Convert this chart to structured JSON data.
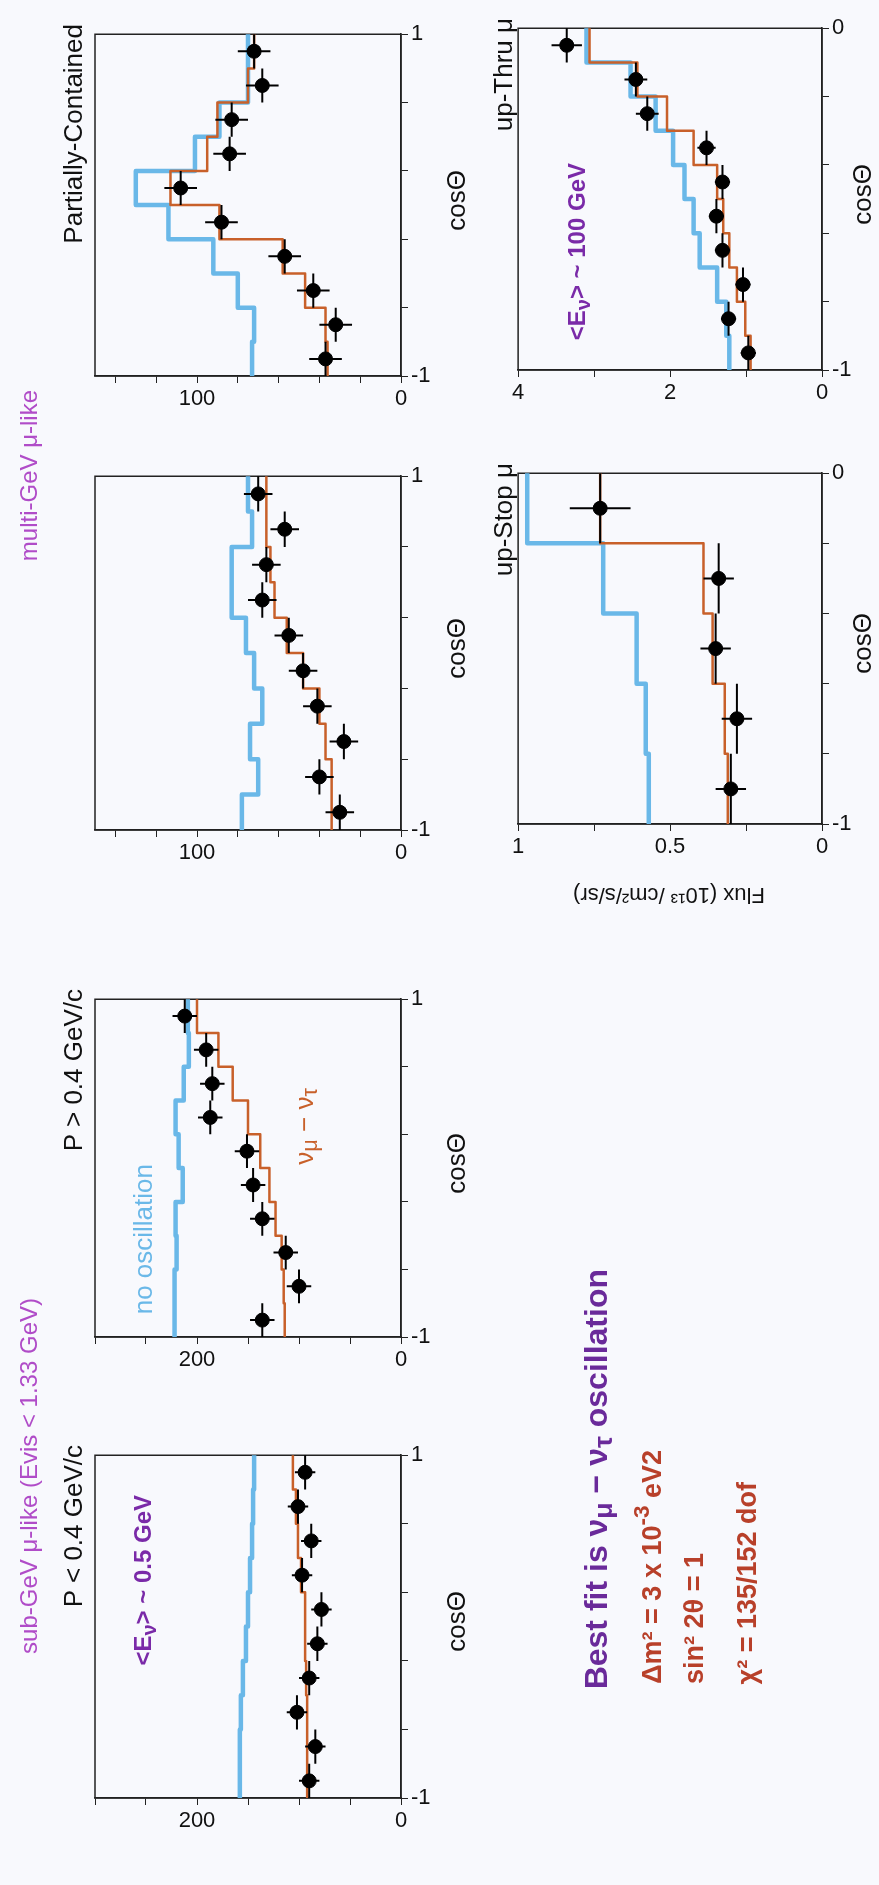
{
  "chart_data": [
    {
      "type": "line",
      "title": "P < 0.4 GeV/c",
      "ylabel": "cosΘ",
      "annotations": [
        "<E$_{ν}$> ~ 0.5 GeV"
      ],
      "xlim": [
        300,
        0
      ],
      "xticks": [
        {
          "value": 300,
          "label": null
        },
        {
          "value": 250,
          "label": null
        },
        200,
        {
          "value": 150,
          "label": null
        },
        {
          "value": 100,
          "label": null
        },
        {
          "value": 50,
          "label": null
        },
        0
      ],
      "ylim": [
        -1,
        1
      ],
      "yticks": [
        -1,
        {
          "value": -0.6,
          "label": null
        },
        {
          "value": -0.2,
          "label": null
        },
        {
          "value": 0.2,
          "label": null
        },
        {
          "value": 0.6,
          "label": null
        },
        1
      ],
      "series": [
        {
          "color": "#6ab8e8",
          "x": [
            158,
            158,
            158,
            158,
            157,
            157,
            155,
            155,
            152,
            152,
            150,
            150,
            148,
            148,
            146,
            146,
            145,
            145,
            144,
            144
          ],
          "values": [
            -1,
            -0.8,
            -0.8,
            -0.6,
            -0.6,
            -0.4,
            -0.4,
            -0.2,
            -0.2,
            0,
            0,
            0.2,
            0.2,
            0.4,
            0.4,
            0.6,
            0.6,
            0.8,
            0.8,
            1
          ]
        },
        {
          "color": "#c8602a",
          "x": [
            92,
            92,
            92,
            92,
            92,
            92,
            93,
            93,
            94,
            94,
            94,
            94,
            98,
            98,
            101,
            101,
            103,
            103,
            106,
            106
          ],
          "values": [
            -1,
            -0.8,
            -0.8,
            -0.6,
            -0.6,
            -0.4,
            -0.4,
            -0.2,
            -0.2,
            0,
            0,
            0.2,
            0.2,
            0.4,
            0.4,
            0.6,
            0.6,
            0.8,
            0.8,
            1
          ]
        },
        {
          "type": "scatter",
          "marker": "circle",
          "color": "#000000",
          "x": [
            90,
            84,
            102,
            90,
            82,
            78,
            97,
            88,
            101,
            94
          ],
          "values": [
            -0.9,
            -0.7,
            -0.5,
            -0.3,
            -0.1,
            0.1,
            0.3,
            0.5,
            0.7,
            0.9
          ],
          "xerrors": [
            10,
            10,
            10,
            10,
            10,
            10,
            10,
            10,
            10,
            10
          ],
          "errors": [
            0.1,
            0.1,
            0.1,
            0.1,
            0.1,
            0.1,
            0.1,
            0.1,
            0.1,
            0.1
          ]
        }
      ]
    },
    {
      "type": "line",
      "title": "P > 0.4 GeV/c",
      "ylabel": "cosΘ",
      "xlim": [
        300,
        0
      ],
      "xticks": [
        {
          "value": 300,
          "label": null
        },
        {
          "value": 250,
          "label": null
        },
        200,
        {
          "value": 150,
          "label": null
        },
        {
          "value": 100,
          "label": null
        },
        {
          "value": 50,
          "label": null
        },
        0
      ],
      "ylim": [
        -1,
        1
      ],
      "yticks": [
        -1,
        {
          "value": -0.6,
          "label": null
        },
        {
          "value": -0.2,
          "label": null
        },
        {
          "value": 0.2,
          "label": null
        },
        {
          "value": 0.6,
          "label": null
        },
        1
      ],
      "series": [
        {
          "name": "no oscillation",
          "color": "#6ab8e8",
          "x": [
            222,
            222,
            222,
            222,
            220,
            220,
            221,
            221,
            214,
            214,
            218,
            218,
            221,
            221,
            213,
            213,
            208,
            208,
            209,
            209
          ],
          "values": [
            -1,
            -0.8,
            -0.8,
            -0.6,
            -0.6,
            -0.4,
            -0.4,
            -0.2,
            -0.2,
            0,
            0,
            0.2,
            0.2,
            0.4,
            0.4,
            0.6,
            0.6,
            0.8,
            0.8,
            1
          ]
        },
        {
          "name": "ν$_{μ}$ − ν$_{τ}$",
          "color": "#c8602a",
          "x": [
            114,
            114,
            115,
            115,
            117,
            117,
            123,
            123,
            129,
            129,
            138,
            138,
            150,
            150,
            165,
            165,
            179,
            179,
            200,
            200
          ],
          "values": [
            -1,
            -0.8,
            -0.8,
            -0.6,
            -0.6,
            -0.4,
            -0.4,
            -0.2,
            -0.2,
            0,
            0,
            0.2,
            0.2,
            0.4,
            0.4,
            0.6,
            0.6,
            0.8,
            0.8,
            1
          ]
        },
        {
          "type": "scatter",
          "marker": "circle",
          "color": "#000000",
          "x": [
            136,
            100,
            113,
            136,
            145,
            151,
            187,
            185,
            191,
            212
          ],
          "values": [
            -0.9,
            -0.7,
            -0.5,
            -0.3,
            -0.1,
            0.1,
            0.3,
            0.5,
            0.7,
            0.9
          ],
          "xerrors": [
            12,
            12,
            12,
            12,
            12,
            12,
            12,
            12,
            12,
            12
          ],
          "errors": [
            0.1,
            0.1,
            0.1,
            0.1,
            0.1,
            0.1,
            0.1,
            0.1,
            0.1,
            0.1
          ]
        }
      ]
    },
    {
      "type": "line",
      "ylabel": "cosΘ",
      "xlim": [
        150,
        0
      ],
      "xticks": [
        {
          "value": 140,
          "label": null
        },
        {
          "value": 120,
          "label": null
        },
        100,
        {
          "value": 80,
          "label": null
        },
        {
          "value": 60,
          "label": null
        },
        {
          "value": 40,
          "label": null
        },
        {
          "value": 20,
          "label": null
        },
        0
      ],
      "ylim": [
        -1,
        1
      ],
      "yticks": [
        -1,
        {
          "value": -0.6,
          "label": null
        },
        {
          "value": -0.2,
          "label": null
        },
        {
          "value": 0.2,
          "label": null
        },
        {
          "value": 0.6,
          "label": null
        },
        1
      ],
      "series": [
        {
          "color": "#6ab8e8",
          "x": [
            78,
            78,
            70,
            70,
            74,
            74,
            68,
            68,
            72,
            72,
            76,
            76,
            83,
            83,
            83,
            83,
            73,
            73,
            75,
            75
          ],
          "values": [
            -1,
            -0.8,
            -0.8,
            -0.6,
            -0.6,
            -0.4,
            -0.4,
            -0.2,
            -0.2,
            0,
            0,
            0.2,
            0.2,
            0.4,
            0.4,
            0.6,
            0.6,
            0.8,
            0.8,
            1
          ]
        },
        {
          "color": "#c8602a",
          "x": [
            34,
            34,
            34,
            34,
            37,
            37,
            40,
            40,
            48,
            48,
            56,
            56,
            62,
            62,
            64,
            64,
            66,
            66,
            66,
            66
          ],
          "values": [
            -1,
            -0.8,
            -0.8,
            -0.6,
            -0.6,
            -0.4,
            -0.4,
            -0.2,
            -0.2,
            0,
            0,
            0.2,
            0.2,
            0.4,
            0.4,
            0.6,
            0.6,
            0.8,
            0.8,
            1
          ]
        },
        {
          "type": "scatter",
          "marker": "circle",
          "color": "#000000",
          "x": [
            30,
            40,
            28,
            41,
            48,
            55,
            68,
            66,
            57,
            70
          ],
          "values": [
            -0.9,
            -0.7,
            -0.5,
            -0.3,
            -0.1,
            0.1,
            0.3,
            0.5,
            0.7,
            0.9
          ],
          "xerrors": [
            7,
            7,
            7,
            7,
            7,
            7,
            7,
            7,
            7,
            7
          ],
          "errors": [
            0.1,
            0.1,
            0.1,
            0.1,
            0.1,
            0.1,
            0.1,
            0.1,
            0.1,
            0.1
          ]
        }
      ]
    },
    {
      "type": "line",
      "title": "Partially-Contained",
      "ylabel": "cosΘ",
      "xlim": [
        150,
        0
      ],
      "xticks": [
        {
          "value": 140,
          "label": null
        },
        {
          "value": 120,
          "label": null
        },
        100,
        {
          "value": 80,
          "label": null
        },
        {
          "value": 60,
          "label": null
        },
        {
          "value": 40,
          "label": null
        },
        {
          "value": 20,
          "label": null
        },
        0
      ],
      "ylim": [
        -1,
        1
      ],
      "yticks": [
        -1,
        {
          "value": -0.6,
          "label": null
        },
        {
          "value": -0.2,
          "label": null
        },
        {
          "value": 0.2,
          "label": null
        },
        {
          "value": 0.6,
          "label": null
        },
        1
      ],
      "series": [
        {
          "color": "#6ab8e8",
          "x": [
            73,
            73,
            72,
            72,
            80,
            80,
            92,
            92,
            114,
            114,
            130,
            130,
            101,
            101,
            89,
            89,
            75,
            75,
            75,
            75
          ],
          "values": [
            -1,
            -0.8,
            -0.8,
            -0.6,
            -0.6,
            -0.4,
            -0.4,
            -0.2,
            -0.2,
            0,
            0,
            0.2,
            0.2,
            0.4,
            0.4,
            0.6,
            0.6,
            0.8,
            0.8,
            1
          ]
        },
        {
          "color": "#c8602a",
          "x": [
            36,
            36,
            37,
            37,
            47,
            47,
            58,
            58,
            89,
            89,
            113,
            113,
            95,
            95,
            90,
            90,
            75,
            75,
            72,
            72
          ],
          "values": [
            -1,
            -0.8,
            -0.8,
            -0.6,
            -0.6,
            -0.4,
            -0.4,
            -0.2,
            -0.2,
            0,
            0,
            0.2,
            0.2,
            0.4,
            0.4,
            0.6,
            0.6,
            0.8,
            0.8,
            1
          ]
        },
        {
          "type": "scatter",
          "marker": "circle",
          "color": "#000000",
          "x": [
            37,
            32,
            43,
            57,
            88,
            108,
            84,
            83,
            68,
            72
          ],
          "values": [
            -0.9,
            -0.7,
            -0.5,
            -0.3,
            -0.1,
            0.1,
            0.3,
            0.5,
            0.7,
            0.9
          ],
          "xerrors": [
            8,
            8,
            8,
            8,
            8,
            8,
            8,
            8,
            8,
            8
          ],
          "errors": [
            0.1,
            0.1,
            0.1,
            0.1,
            0.1,
            0.1,
            0.1,
            0.1,
            0.1,
            0.1
          ]
        }
      ]
    },
    {
      "type": "line",
      "title": "up-Stop μ",
      "ylabel": "cosΘ",
      "xlabel": "Flux (10¹³ /cm²/s/sr)",
      "xlim": [
        1,
        0
      ],
      "xticks": [
        1,
        {
          "value": 0.75,
          "label": null
        },
        0.5,
        {
          "value": 0.25,
          "label": null
        },
        0
      ],
      "ylim": [
        -1,
        0
      ],
      "yticks": [
        -1,
        {
          "value": -0.8,
          "label": null
        },
        {
          "value": -0.6,
          "label": null
        },
        {
          "value": -0.4,
          "label": null
        },
        {
          "value": -0.2,
          "label": null
        },
        0
      ],
      "series": [
        {
          "color": "#6ab8e8",
          "x": [
            0.57,
            0.57,
            0.58,
            0.58,
            0.61,
            0.61,
            0.72,
            0.72,
            0.97,
            0.97
          ],
          "values": [
            -1,
            -0.8,
            -0.8,
            -0.6,
            -0.6,
            -0.4,
            -0.4,
            -0.2,
            -0.2,
            0
          ]
        },
        {
          "color": "#c8602a",
          "x": [
            0.31,
            0.31,
            0.32,
            0.32,
            0.36,
            0.36,
            0.39,
            0.39,
            0.73,
            0.73
          ],
          "values": [
            -1,
            -0.8,
            -0.8,
            -0.6,
            -0.6,
            -0.4,
            -0.4,
            -0.2,
            -0.2,
            0
          ]
        },
        {
          "type": "scatter",
          "marker": "circle",
          "color": "#000000",
          "x": [
            0.3,
            0.28,
            0.35,
            0.34,
            0.73
          ],
          "values": [
            -0.9,
            -0.7,
            -0.5,
            -0.3,
            -0.1
          ],
          "xerrors": [
            0.05,
            0.05,
            0.05,
            0.05,
            0.1
          ],
          "errors": [
            0.1,
            0.1,
            0.1,
            0.1,
            0.1
          ]
        }
      ]
    },
    {
      "type": "line",
      "title": "up-Thru μ",
      "ylabel": "cosΘ",
      "annotations": [
        "<E$_{ν}$> ~ 100 GeV"
      ],
      "xlim": [
        4,
        0
      ],
      "xticks": [
        4,
        {
          "value": 3,
          "label": null
        },
        2,
        {
          "value": 1,
          "label": null
        },
        0
      ],
      "ylim": [
        -1,
        0
      ],
      "yticks": [
        -1,
        {
          "value": -0.8,
          "label": null
        },
        {
          "value": -0.6,
          "label": null
        },
        {
          "value": -0.4,
          "label": null
        },
        {
          "value": -0.2,
          "label": null
        },
        0
      ],
      "series": [
        {
          "color": "#6ab8e8",
          "x": [
            1.22,
            1.22,
            1.26,
            1.26,
            1.38,
            1.38,
            1.61,
            1.61,
            1.69,
            1.69,
            1.81,
            1.81,
            1.96,
            1.96,
            2.19,
            2.19,
            2.52,
            2.52,
            3.1,
            3.1
          ],
          "values": [
            -1,
            -0.9,
            -0.9,
            -0.8,
            -0.8,
            -0.7,
            -0.7,
            -0.6,
            -0.6,
            -0.5,
            -0.5,
            -0.4,
            -0.4,
            -0.3,
            -0.3,
            -0.2,
            -0.2,
            -0.1,
            -0.1,
            0
          ]
        },
        {
          "color": "#c8602a",
          "x": [
            0.94,
            0.94,
            1.01,
            1.01,
            1.12,
            1.12,
            1.22,
            1.22,
            1.3,
            1.3,
            1.38,
            1.38,
            1.69,
            1.69,
            2.04,
            2.04,
            2.43,
            2.43,
            3.06,
            3.06
          ],
          "values": [
            -1,
            -0.9,
            -0.9,
            -0.8,
            -0.8,
            -0.7,
            -0.7,
            -0.6,
            -0.6,
            -0.5,
            -0.5,
            -0.4,
            -0.4,
            -0.3,
            -0.3,
            -0.2,
            -0.2,
            -0.1,
            -0.1,
            0
          ]
        },
        {
          "type": "scatter",
          "marker": "circle",
          "color": "#000000",
          "x": [
            0.97,
            1.23,
            1.04,
            1.31,
            1.39,
            1.31,
            1.52,
            2.3,
            2.45,
            3.36
          ],
          "values": [
            -0.95,
            -0.85,
            -0.75,
            -0.65,
            -0.55,
            -0.45,
            -0.35,
            -0.25,
            -0.15,
            -0.05
          ],
          "xerrors": [
            0.1,
            0.1,
            0.1,
            0.1,
            0.1,
            0.1,
            0.12,
            0.15,
            0.15,
            0.2
          ],
          "errors": [
            0.05,
            0.05,
            0.05,
            0.05,
            0.05,
            0.05,
            0.05,
            0.05,
            0.05,
            0.05
          ]
        }
      ]
    },
    {
      "type": "other",
      "annotations": [
        "sub-GeV μ-like (Evis < 1.33 GeV)",
        "multi-GeV μ-like",
        "Best fit is ν$_{μ}$ − ν$_{τ}$ oscillation",
        "Δm² = 3 x 10$^{-3}$ eV2",
        "sin² 2θ = 1",
        "χ² = 135/152 dof"
      ]
    }
  ]
}
